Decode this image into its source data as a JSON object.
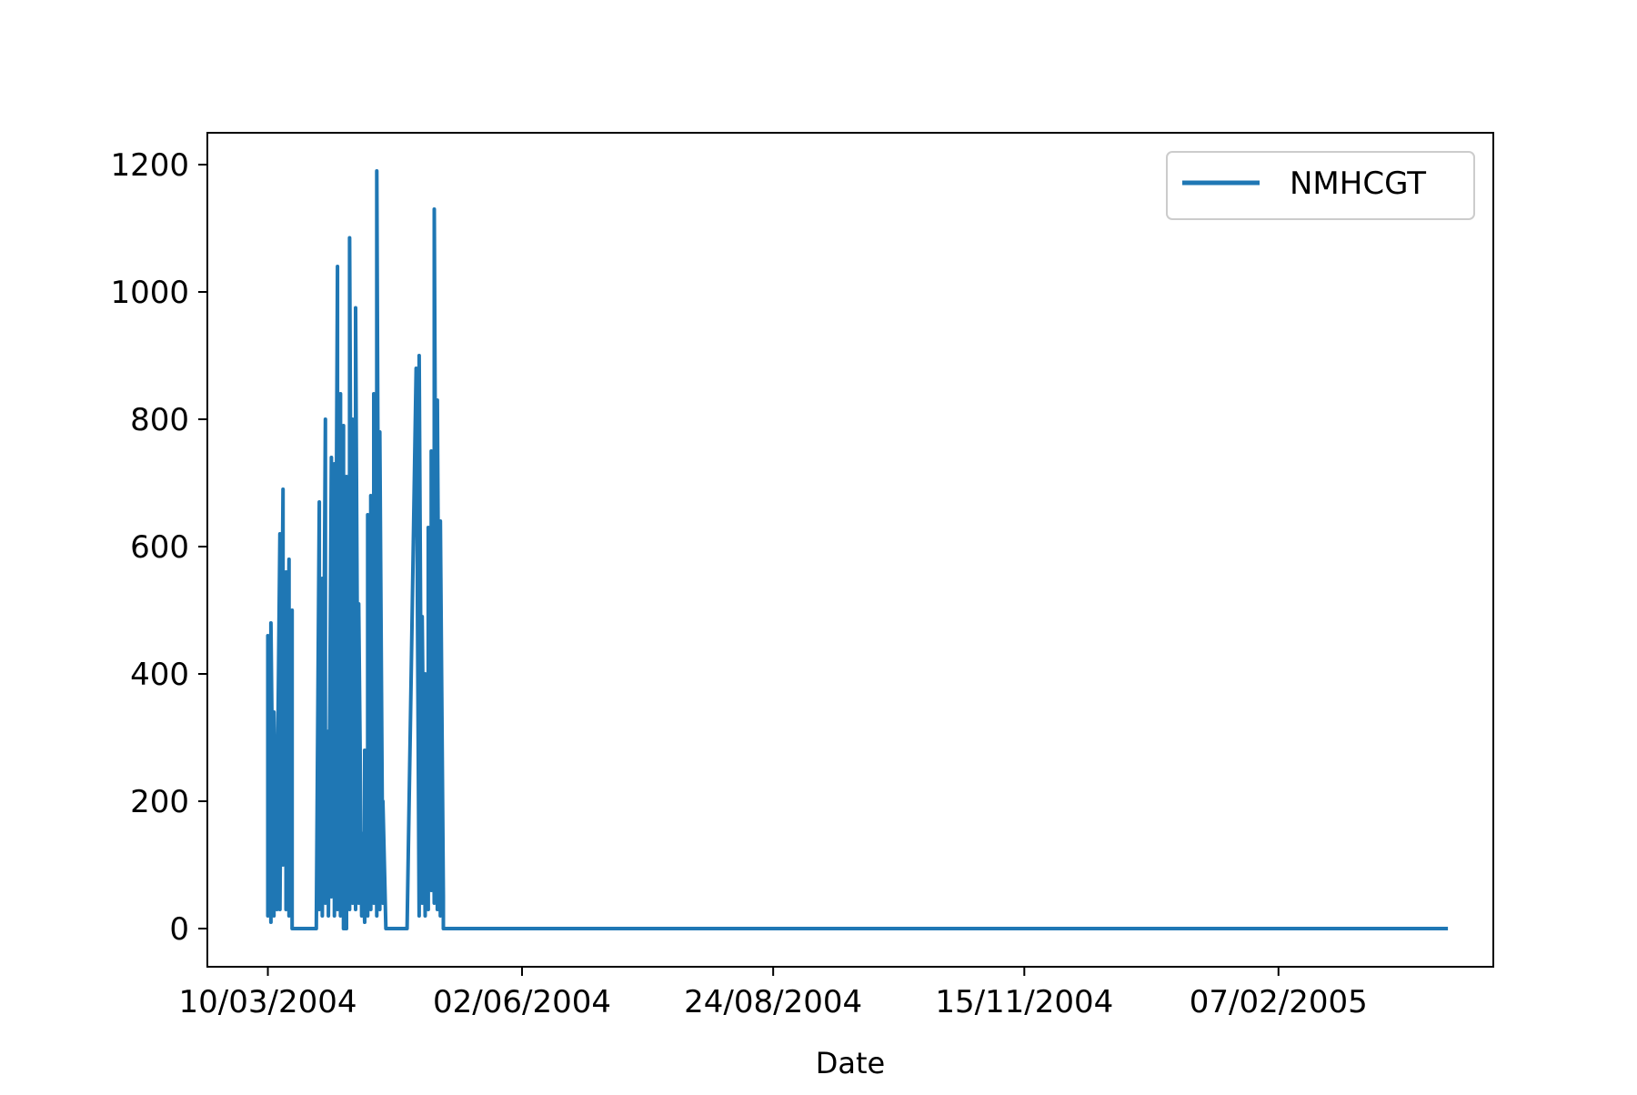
{
  "chart_data": {
    "type": "line",
    "xlabel": "Date",
    "ylabel": "",
    "ylim": [
      -60,
      1250
    ],
    "y_ticks": [
      0,
      200,
      400,
      600,
      800,
      1000,
      1200
    ],
    "x_tick_labels": [
      "10/03/2004",
      "02/06/2004",
      "24/08/2004",
      "15/11/2004",
      "07/02/2005"
    ],
    "x_tick_dates": [
      "2004-03-10",
      "2004-06-02",
      "2004-08-24",
      "2004-11-15",
      "2005-02-07"
    ],
    "xlim": [
      "2004-02-19",
      "2005-04-19"
    ],
    "legend": {
      "placement": "top-right"
    },
    "grid": false,
    "color": "#1f77b4",
    "series": [
      {
        "name": "NMHCGT",
        "x": [
          "2004-03-10",
          "2004-03-10",
          "2004-03-10",
          "2004-03-11",
          "2004-03-11",
          "2004-03-11",
          "2004-03-12",
          "2004-03-12",
          "2004-03-13",
          "2004-03-13",
          "2004-03-14",
          "2004-03-14",
          "2004-03-15",
          "2004-03-15",
          "2004-03-16",
          "2004-03-16",
          "2004-03-17",
          "2004-03-17",
          "2004-03-18",
          "2004-03-18",
          "2004-03-19",
          "2004-03-20",
          "2004-03-20",
          "2004-03-21",
          "2004-03-22",
          "2004-03-24",
          "2004-03-26",
          "2004-03-27",
          "2004-03-27",
          "2004-03-28",
          "2004-03-28",
          "2004-03-29",
          "2004-03-29",
          "2004-03-30",
          "2004-03-30",
          "2004-03-31",
          "2004-03-31",
          "2004-04-01",
          "2004-04-01",
          "2004-04-02",
          "2004-04-02",
          "2004-04-03",
          "2004-04-03",
          "2004-04-04",
          "2004-04-04",
          "2004-04-05",
          "2004-04-05",
          "2004-04-06",
          "2004-04-06",
          "2004-04-07",
          "2004-04-07",
          "2004-04-08",
          "2004-04-08",
          "2004-04-09",
          "2004-04-09",
          "2004-04-10",
          "2004-04-10",
          "2004-04-11",
          "2004-04-11",
          "2004-04-12",
          "2004-04-12",
          "2004-04-13",
          "2004-04-13",
          "2004-04-14",
          "2004-04-14",
          "2004-04-15",
          "2004-04-15",
          "2004-04-16",
          "2004-04-16",
          "2004-04-17",
          "2004-04-17",
          "2004-04-18",
          "2004-04-18",
          "2004-04-19",
          "2004-04-19",
          "2004-04-20",
          "2004-04-20",
          "2004-04-21",
          "2004-04-22",
          "2004-04-25",
          "2004-04-28",
          "2004-04-29",
          "2004-04-29",
          "2004-04-30",
          "2004-04-30",
          "2004-05-01",
          "2004-05-01",
          "2004-05-02",
          "2004-05-02",
          "2004-05-03",
          "2004-05-03",
          "2004-05-04",
          "2004-05-04",
          "2004-05-05",
          "2004-05-05",
          "2004-05-06",
          "2004-05-06",
          "2004-05-07",
          "2004-05-07",
          "2004-05-08",
          "2005-04-04"
        ],
        "y": [
          150,
          20,
          460,
          10,
          120,
          480,
          20,
          340,
          30,
          150,
          620,
          30,
          690,
          100,
          560,
          30,
          580,
          20,
          500,
          0,
          0,
          0,
          0,
          0,
          0,
          0,
          0,
          670,
          30,
          550,
          20,
          800,
          40,
          310,
          20,
          740,
          50,
          730,
          20,
          1040,
          30,
          840,
          20,
          790,
          0,
          0,
          710,
          30,
          1085,
          40,
          800,
          30,
          975,
          40,
          510,
          20,
          150,
          10,
          280,
          20,
          650,
          30,
          680,
          40,
          840,
          20,
          1190,
          30,
          780,
          40,
          200,
          0,
          0,
          0,
          0,
          0,
          0,
          0,
          0,
          0,
          880,
          20,
          900,
          40,
          490,
          20,
          400,
          30,
          630,
          60,
          750,
          40,
          1130,
          30,
          830,
          20,
          640,
          50,
          0,
          0,
          0
        ]
      }
    ]
  }
}
